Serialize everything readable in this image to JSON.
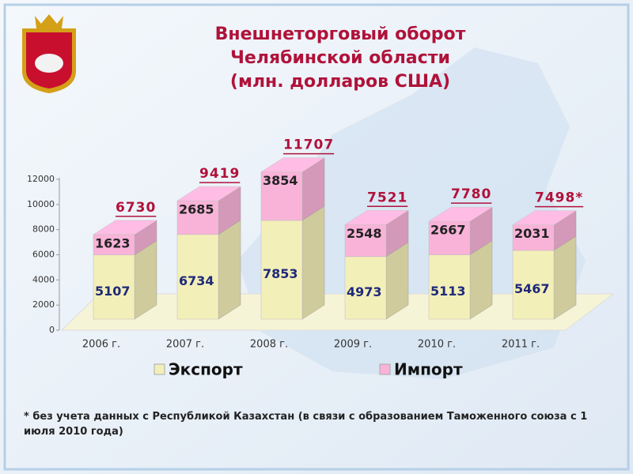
{
  "chart_data": {
    "type": "bar3d-stacked",
    "title": [
      "Внешнеторговый оборот",
      "Челябинской области",
      "(млн. долларов США)"
    ],
    "categories": [
      "2006 г.",
      "2007 г.",
      "2008 г.",
      "2009 г.",
      "2010 г.",
      "2011 г."
    ],
    "series": [
      {
        "name": "Экспорт",
        "color": "#f3efb8",
        "values": [
          5107,
          6734,
          7853,
          4973,
          5113,
          5467
        ]
      },
      {
        "name": "Импорт",
        "color": "#f9b3d9",
        "values": [
          1623,
          2685,
          3854,
          2548,
          2667,
          2031
        ]
      }
    ],
    "totals": {
      "values": [
        6730,
        9419,
        11707,
        7521,
        7780,
        7498
      ],
      "value_labels": [
        "6730",
        "9419",
        "11707",
        "7521",
        "7780",
        "7498*"
      ]
    },
    "ylim": [
      0,
      12000
    ],
    "yticks": [
      0,
      2000,
      4000,
      6000,
      8000,
      10000,
      12000
    ],
    "footnote": "* без учета данных с Республикой Казахстан (в связи с образованием Таможенного союза с 1 июля 2010 года)"
  }
}
